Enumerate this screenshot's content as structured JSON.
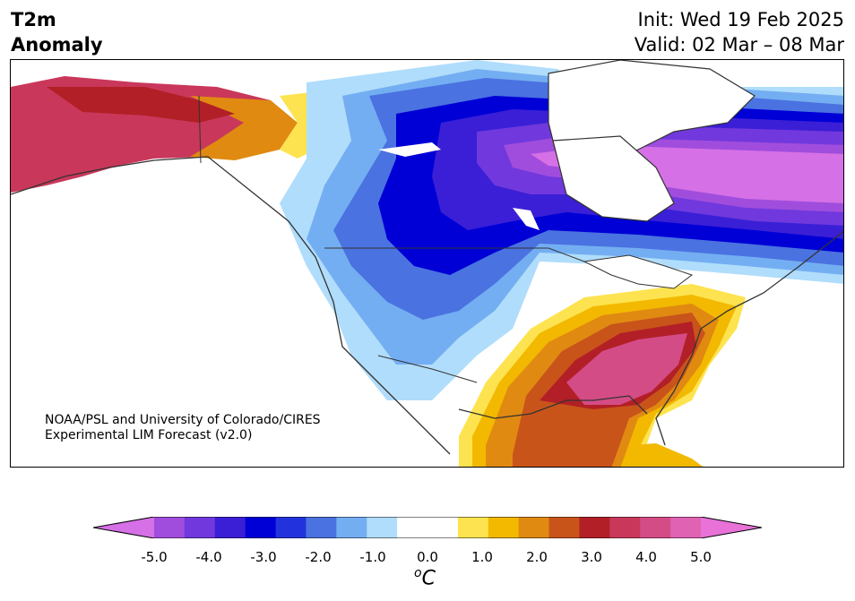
{
  "header": {
    "title_line1": "T2m",
    "title_line2": "Anomaly",
    "init": "Init: Wed 19 Feb 2025",
    "valid": "Valid: 02 Mar – 08 Mar"
  },
  "map": {
    "region": "North America",
    "credit_line1": "NOAA/PSL and University of Colorado/CIRES",
    "credit_line2": "Experimental LIM Forecast (v2.0)"
  },
  "colorbar": {
    "ticks": [
      "-5.0",
      "-4.0",
      "-3.0",
      "-2.0",
      "-1.0",
      "0.0",
      "1.0",
      "2.0",
      "3.0",
      "4.0",
      "5.0"
    ],
    "unit_prefix": "o",
    "unit_main": "C",
    "colors": [
      "#d670e6",
      "#a04ddd",
      "#7038dd",
      "#3a1fd6",
      "#0000d6",
      "#2233dd",
      "#4a72e0",
      "#74aef2",
      "#b0ddfb",
      "#ffffff",
      "#ffffff",
      "#fde34f",
      "#f2b900",
      "#e08a12",
      "#c9541a",
      "#b21f26",
      "#c9375b",
      "#d44c86",
      "#df62b3",
      "#e872d8"
    ]
  }
}
